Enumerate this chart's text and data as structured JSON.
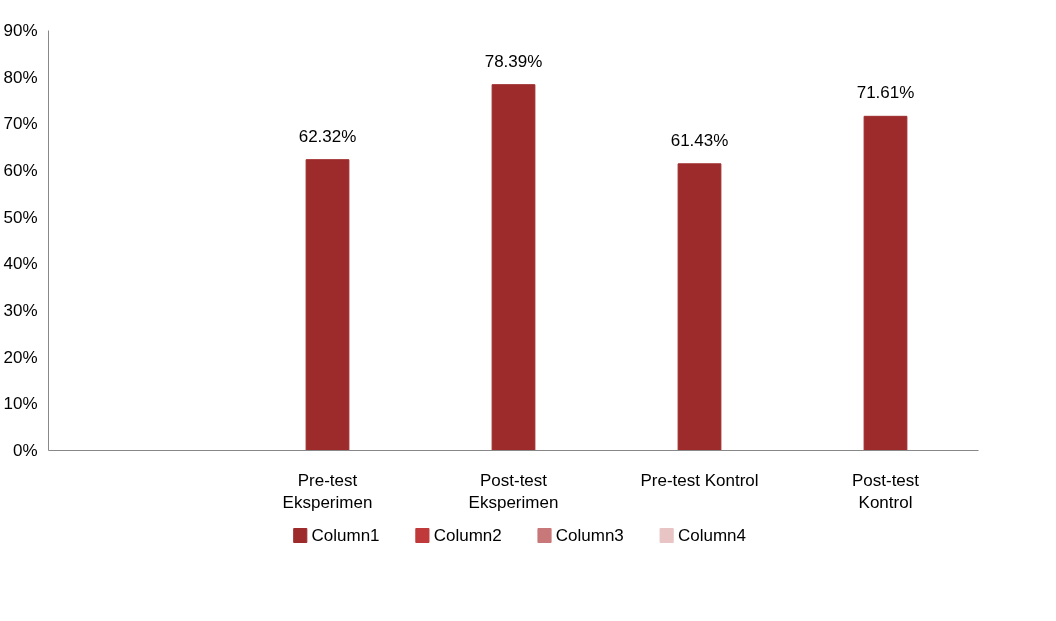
{
  "chart_data": {
    "type": "bar",
    "categories": [
      null,
      "Pre-test Eksperimen",
      "Post-test Eksperimen",
      "Pre-test Kontrol",
      "Post-test Kontrol"
    ],
    "series": [
      {
        "name": "Column1",
        "color": "#9e2b2b",
        "values": [
          null,
          62.32,
          78.39,
          61.43,
          71.61
        ],
        "value_labels": [
          null,
          "62.32%",
          "78.39%",
          "61.43%",
          "71.61%"
        ]
      },
      {
        "name": "Column2",
        "color": "#c0393b",
        "values": [
          null,
          null,
          null,
          null,
          null
        ]
      },
      {
        "name": "Column3",
        "color": "#c87878",
        "values": [
          null,
          null,
          null,
          null,
          null
        ]
      },
      {
        "name": "Column4",
        "color": "#e8c4c4",
        "values": [
          null,
          null,
          null,
          null,
          null
        ]
      }
    ],
    "ylim": [
      0,
      90
    ],
    "yticks": [
      {
        "value": 0,
        "label": "0%"
      },
      {
        "value": 10,
        "label": "10%"
      },
      {
        "value": 20,
        "label": "20%"
      },
      {
        "value": 30,
        "label": "30%"
      },
      {
        "value": 40,
        "label": "40%"
      },
      {
        "value": 50,
        "label": "50%"
      },
      {
        "value": 60,
        "label": "60%"
      },
      {
        "value": 70,
        "label": "70%"
      },
      {
        "value": 80,
        "label": "80%"
      },
      {
        "value": 90,
        "label": "90%"
      }
    ],
    "grid": false,
    "legend": "bottom"
  }
}
